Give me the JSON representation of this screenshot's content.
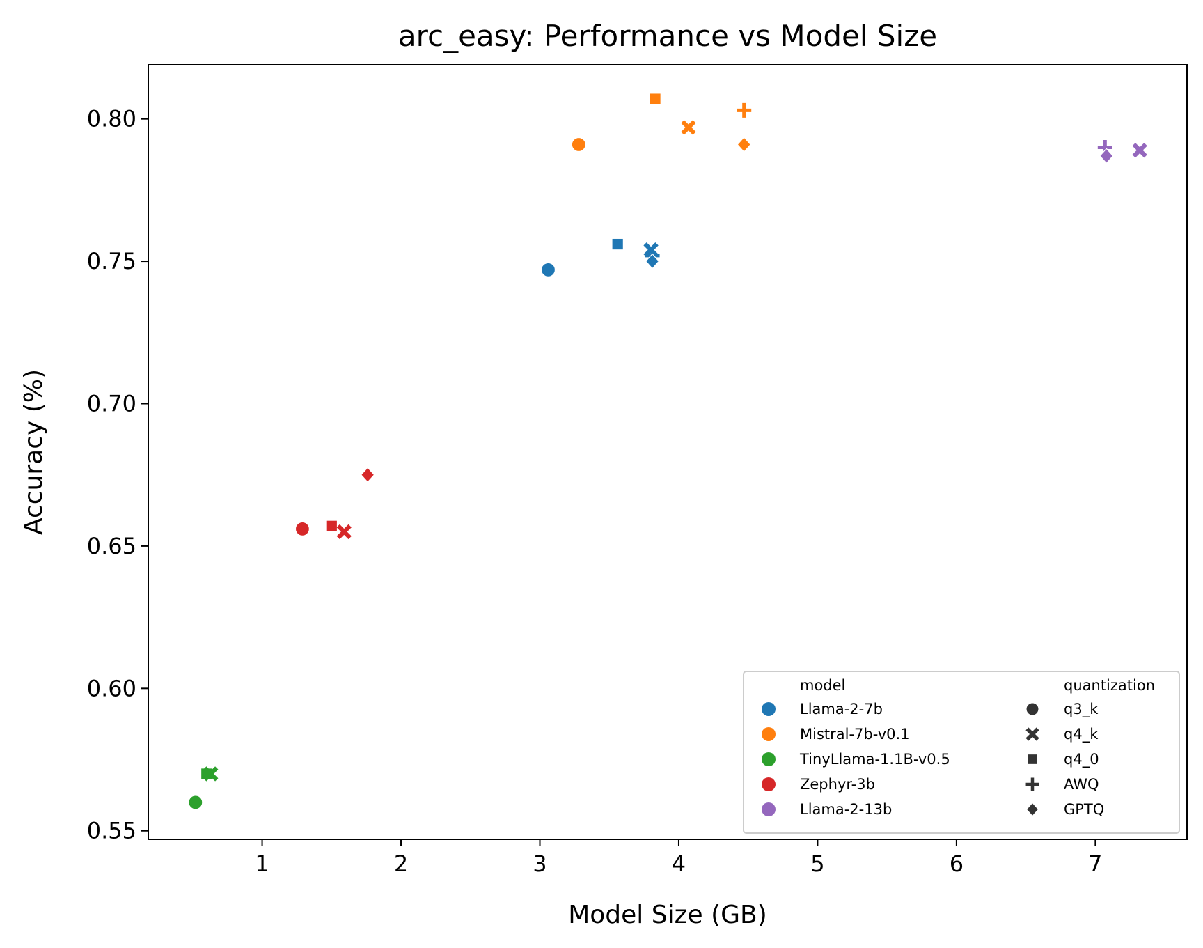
{
  "chart_data": {
    "type": "scatter",
    "title": "arc_easy: Performance vs Model Size",
    "xlabel": "Model Size (GB)",
    "ylabel": "Accuracy (%)",
    "xlim": [
      0.18,
      7.66
    ],
    "ylim": [
      0.547,
      0.819
    ],
    "x_ticks": [
      1,
      2,
      3,
      4,
      5,
      6,
      7
    ],
    "y_ticks": [
      0.55,
      0.6,
      0.65,
      0.7,
      0.75,
      0.8
    ],
    "x_tick_labels": [
      "1",
      "2",
      "3",
      "4",
      "5",
      "6",
      "7"
    ],
    "y_tick_labels": [
      "0.55",
      "0.60",
      "0.65",
      "0.70",
      "0.75",
      "0.80"
    ],
    "grid": false,
    "legend_position": "lower-right",
    "legend": {
      "model_title": "model",
      "quantization_title": "quantization",
      "models": [
        {
          "name": "Llama-2-7b",
          "color": "#1f77b4"
        },
        {
          "name": "Mistral-7b-v0.1",
          "color": "#ff7f0e"
        },
        {
          "name": "TinyLlama-1.1B-v0.5",
          "color": "#2ca02c"
        },
        {
          "name": "Zephyr-3b",
          "color": "#d62728"
        },
        {
          "name": "Llama-2-13b",
          "color": "#9467bd"
        }
      ],
      "quantizations": [
        {
          "name": "q3_k",
          "marker": "circle"
        },
        {
          "name": "q4_k",
          "marker": "x"
        },
        {
          "name": "q4_0",
          "marker": "square"
        },
        {
          "name": "AWQ",
          "marker": "plus"
        },
        {
          "name": "GPTQ",
          "marker": "diamond"
        }
      ]
    },
    "points": [
      {
        "model": "Llama-2-7b",
        "quantization": "q3_k",
        "x": 3.06,
        "y": 0.747
      },
      {
        "model": "Llama-2-7b",
        "quantization": "q4_0",
        "x": 3.56,
        "y": 0.756
      },
      {
        "model": "Llama-2-7b",
        "quantization": "q4_k",
        "x": 3.8,
        "y": 0.754
      },
      {
        "model": "Llama-2-7b",
        "quantization": "AWQ",
        "x": 3.81,
        "y": 0.752
      },
      {
        "model": "Llama-2-7b",
        "quantization": "GPTQ",
        "x": 3.81,
        "y": 0.75
      },
      {
        "model": "Mistral-7b-v0.1",
        "quantization": "q3_k",
        "x": 3.28,
        "y": 0.791
      },
      {
        "model": "Mistral-7b-v0.1",
        "quantization": "q4_0",
        "x": 3.83,
        "y": 0.807
      },
      {
        "model": "Mistral-7b-v0.1",
        "quantization": "q4_k",
        "x": 4.07,
        "y": 0.797
      },
      {
        "model": "Mistral-7b-v0.1",
        "quantization": "AWQ",
        "x": 4.47,
        "y": 0.803
      },
      {
        "model": "Mistral-7b-v0.1",
        "quantization": "GPTQ",
        "x": 4.47,
        "y": 0.791
      },
      {
        "model": "TinyLlama-1.1B-v0.5",
        "quantization": "q3_k",
        "x": 0.52,
        "y": 0.56
      },
      {
        "model": "TinyLlama-1.1B-v0.5",
        "quantization": "q4_0",
        "x": 0.6,
        "y": 0.57
      },
      {
        "model": "TinyLlama-1.1B-v0.5",
        "quantization": "q4_k",
        "x": 0.63,
        "y": 0.57
      },
      {
        "model": "Zephyr-3b",
        "quantization": "q3_k",
        "x": 1.29,
        "y": 0.656
      },
      {
        "model": "Zephyr-3b",
        "quantization": "q4_0",
        "x": 1.5,
        "y": 0.657
      },
      {
        "model": "Zephyr-3b",
        "quantization": "q4_k",
        "x": 1.59,
        "y": 0.655
      },
      {
        "model": "Zephyr-3b",
        "quantization": "GPTQ",
        "x": 1.76,
        "y": 0.675
      },
      {
        "model": "Llama-2-13b",
        "quantization": "AWQ",
        "x": 7.07,
        "y": 0.79
      },
      {
        "model": "Llama-2-13b",
        "quantization": "GPTQ",
        "x": 7.08,
        "y": 0.787
      },
      {
        "model": "Llama-2-13b",
        "quantization": "q4_k",
        "x": 7.32,
        "y": 0.789
      }
    ]
  }
}
